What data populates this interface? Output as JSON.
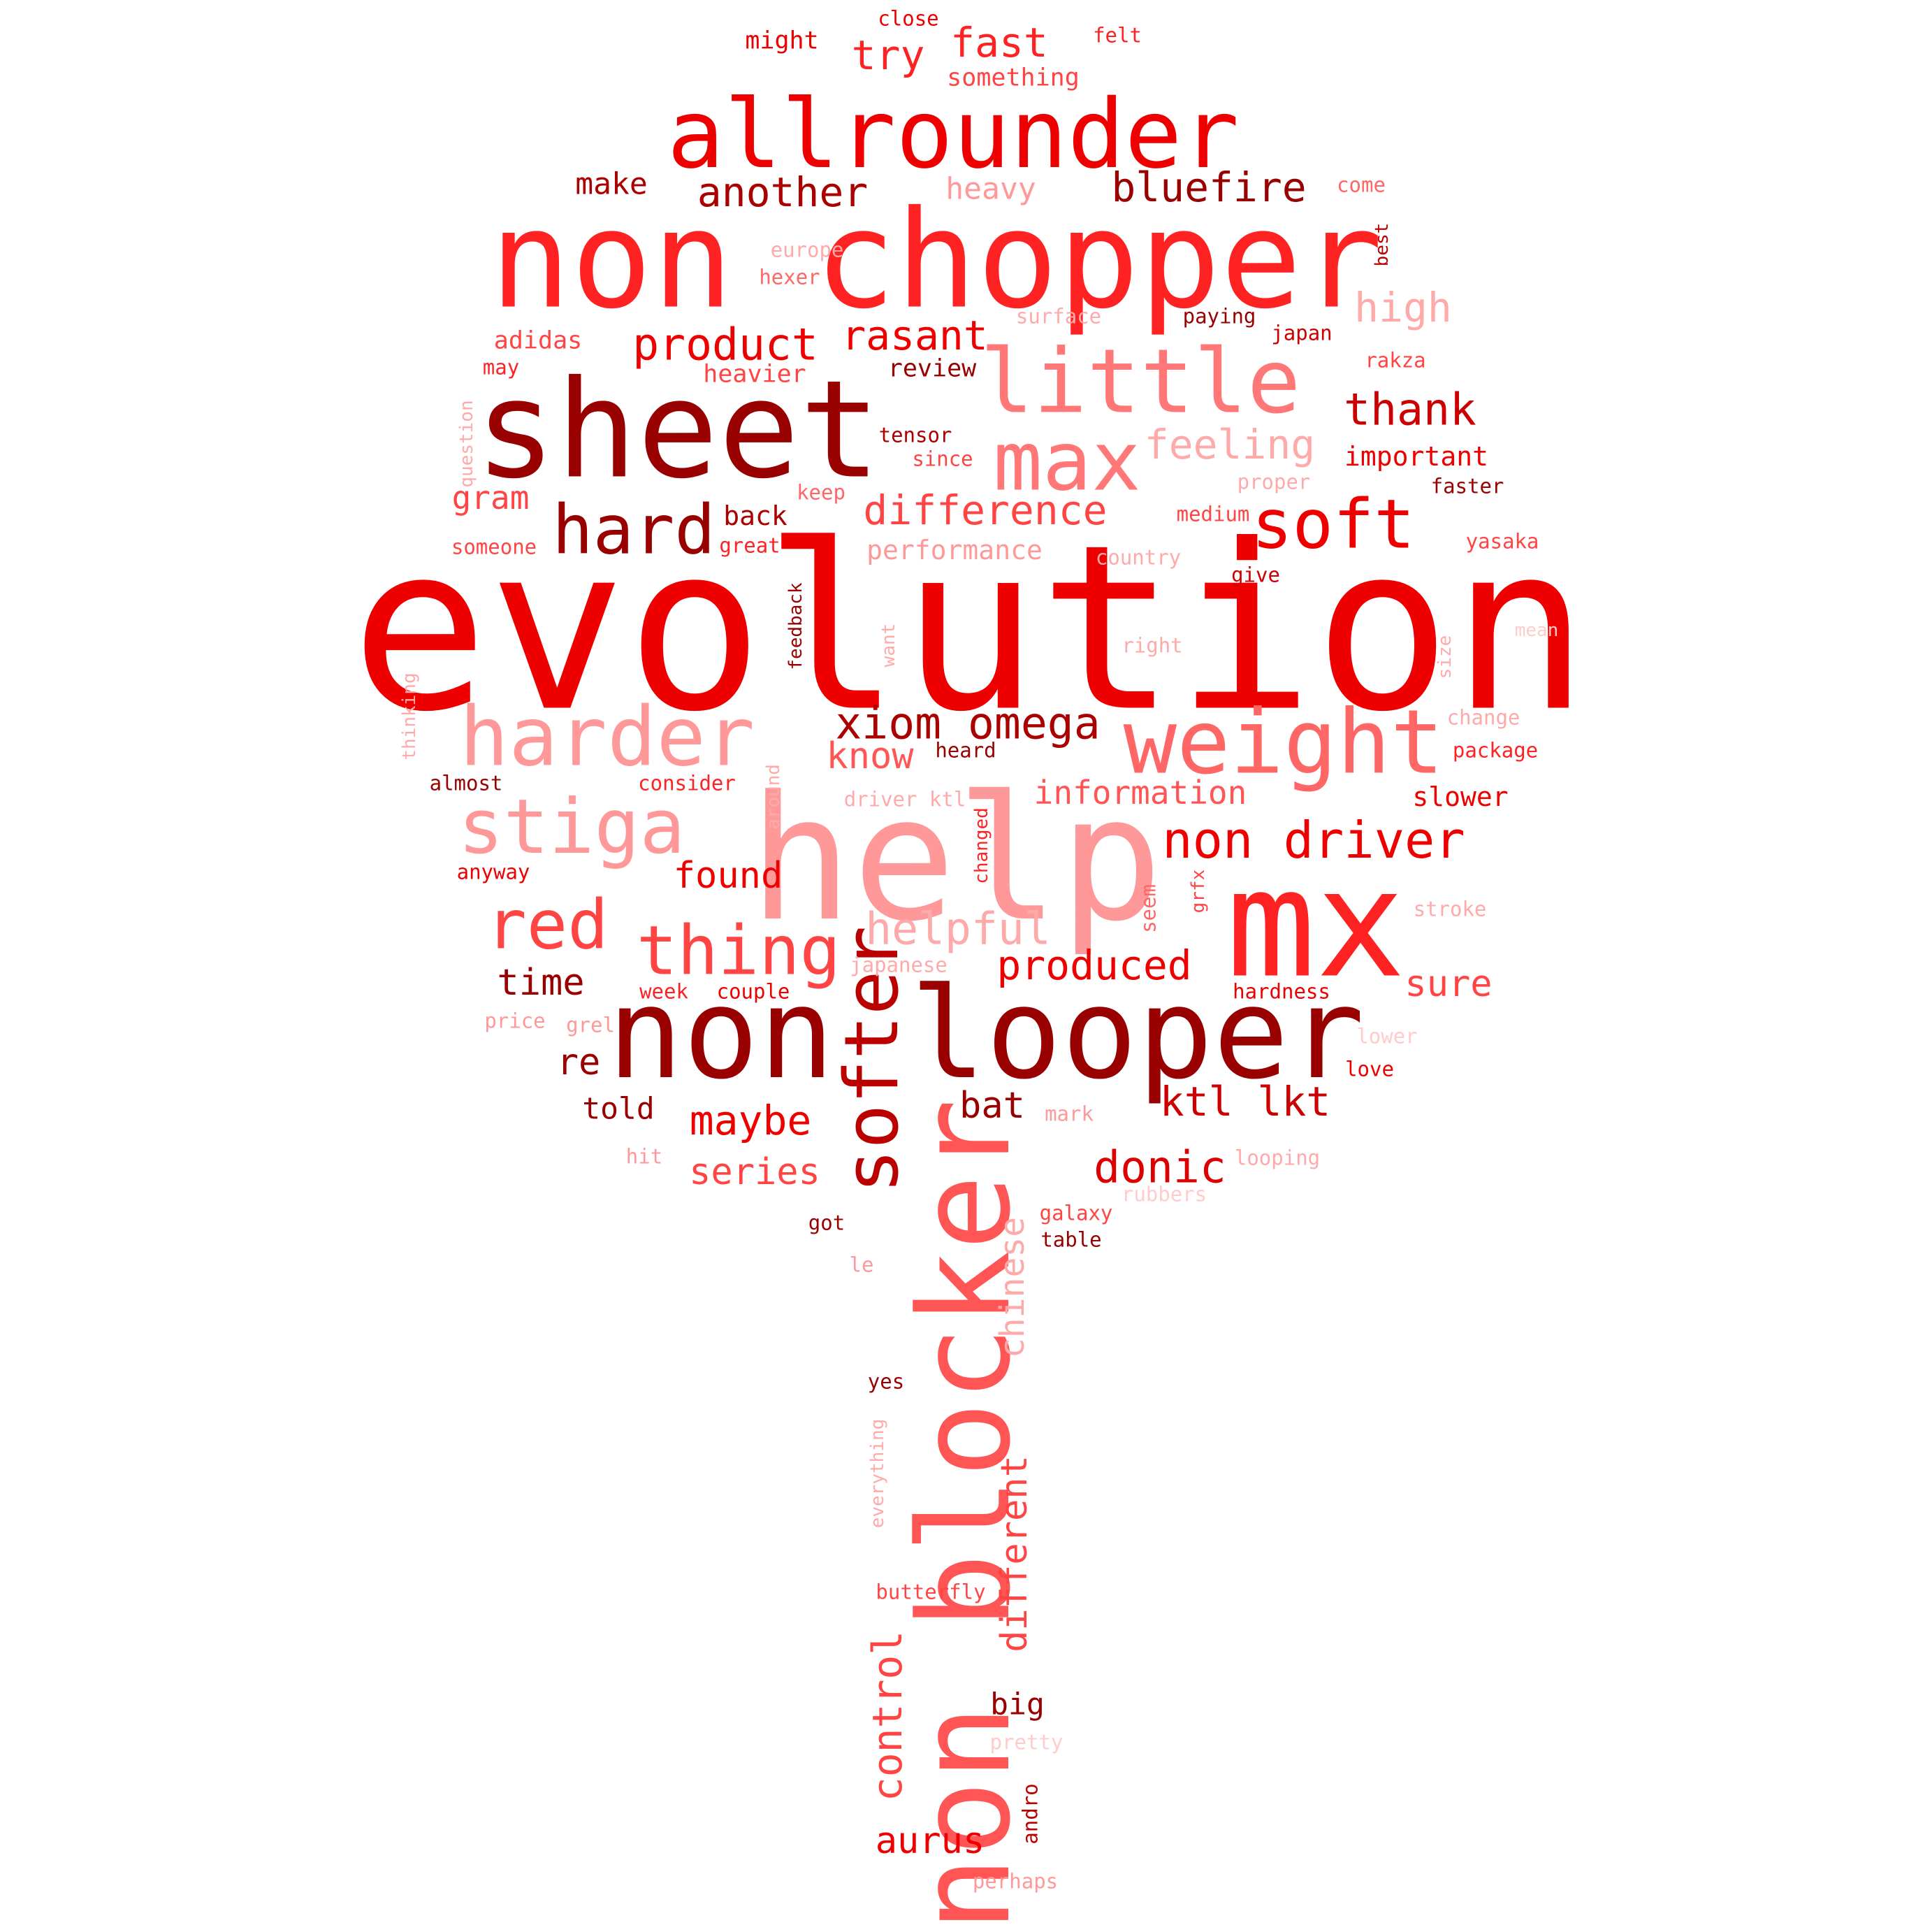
{
  "colors": {
    "background": "#ffffff",
    "bright_red": "#ee0000",
    "mid_red": "#ff3333",
    "dark_red": "#990000",
    "light_red": "#ff9999",
    "salmon": "#ff6666"
  },
  "words": [
    {
      "text": "evolution",
      "color": "#ee0000",
      "vertical": false
    },
    {
      "text": "help",
      "color": "#ff9999",
      "vertical": false
    },
    {
      "text": "non chopper",
      "color": "#ff2222",
      "vertical": false
    },
    {
      "text": "mx",
      "color": "#ff2222",
      "vertical": false
    },
    {
      "text": "sheet",
      "color": "#990000",
      "vertical": false
    },
    {
      "text": "non looper",
      "color": "#990000",
      "vertical": false
    },
    {
      "text": "allrounder",
      "color": "#ee0000",
      "vertical": false
    },
    {
      "text": "non blocker",
      "color": "#ff5555",
      "vertical": true
    },
    {
      "text": "weight",
      "color": "#ff6666",
      "vertical": false
    },
    {
      "text": "little",
      "color": "#ff7777",
      "vertical": false
    },
    {
      "text": "harder",
      "color": "#ff9999",
      "vertical": false
    },
    {
      "text": "stiga",
      "color": "#ff9999",
      "vertical": false
    },
    {
      "text": "max",
      "color": "#ff7777",
      "vertical": false
    },
    {
      "text": "softer",
      "color": "#bb0000",
      "vertical": true
    },
    {
      "text": "hard",
      "color": "#990000",
      "vertical": false
    },
    {
      "text": "soft",
      "color": "#ee0000",
      "vertical": false
    },
    {
      "text": "red",
      "color": "#ff4444",
      "vertical": false
    },
    {
      "text": "thing",
      "color": "#ff4444",
      "vertical": false
    },
    {
      "text": "non driver",
      "color": "#ee0000",
      "vertical": false
    },
    {
      "text": "xiom omega",
      "color": "#aa0000",
      "vertical": false
    },
    {
      "text": "helpful",
      "color": "#ffaaaa",
      "vertical": false
    },
    {
      "text": "product",
      "color": "#ee0000",
      "vertical": false
    },
    {
      "text": "rasant",
      "color": "#ee0000",
      "vertical": false
    },
    {
      "text": "thank",
      "color": "#cc0000",
      "vertical": false
    },
    {
      "text": "high",
      "color": "#ffaaaa",
      "vertical": false
    },
    {
      "text": "feeling",
      "color": "#ffaaaa",
      "vertical": false
    },
    {
      "text": "difference",
      "color": "#ff4444",
      "vertical": false
    },
    {
      "text": "bluefire",
      "color": "#990000",
      "vertical": false
    },
    {
      "text": "another",
      "color": "#aa0000",
      "vertical": false
    },
    {
      "text": "try",
      "color": "#ff2222",
      "vertical": false
    },
    {
      "text": "fast",
      "color": "#ff2222",
      "vertical": false
    },
    {
      "text": "donic",
      "color": "#dd0000",
      "vertical": false
    },
    {
      "text": "ktl lkt",
      "color": "#cc0000",
      "vertical": false
    },
    {
      "text": "produced",
      "color": "#ee0000",
      "vertical": false
    },
    {
      "text": "maybe",
      "color": "#ee0000",
      "vertical": false
    },
    {
      "text": "found",
      "color": "#ee0000",
      "vertical": false
    },
    {
      "text": "know",
      "color": "#ff5555",
      "vertical": false
    },
    {
      "text": "information",
      "color": "#ff5555",
      "vertical": false
    },
    {
      "text": "series",
      "color": "#ff4444",
      "vertical": false
    },
    {
      "text": "sure",
      "color": "#ff4444",
      "vertical": false
    },
    {
      "text": "time",
      "color": "#990000",
      "vertical": false
    },
    {
      "text": "gram",
      "color": "#ff4444",
      "vertical": false
    },
    {
      "text": "heavy",
      "color": "#ff9999",
      "vertical": false
    },
    {
      "text": "make",
      "color": "#aa0000",
      "vertical": false
    },
    {
      "text": "re",
      "color": "#990000",
      "vertical": false
    },
    {
      "text": "bat",
      "color": "#990000",
      "vertical": false
    },
    {
      "text": "told",
      "color": "#990000",
      "vertical": false
    },
    {
      "text": "back",
      "color": "#aa0000",
      "vertical": false
    },
    {
      "text": "aurus",
      "color": "#ee0000",
      "vertical": false
    },
    {
      "text": "different",
      "color": "#ff4444",
      "vertical": true
    },
    {
      "text": "control",
      "color": "#ff4444",
      "vertical": true
    },
    {
      "text": "chinese",
      "color": "#ffaaaa",
      "vertical": true
    },
    {
      "text": "big",
      "color": "#990000",
      "vertical": false
    },
    {
      "text": "performance",
      "color": "#ff9999",
      "vertical": false
    },
    {
      "text": "slower",
      "color": "#ee0000",
      "vertical": false
    },
    {
      "text": "important",
      "color": "#ee0000",
      "vertical": false
    },
    {
      "text": "review",
      "color": "#990000",
      "vertical": false
    },
    {
      "text": "heavier",
      "color": "#ff4444",
      "vertical": false
    },
    {
      "text": "adidas",
      "color": "#ff4444",
      "vertical": false
    },
    {
      "text": "something",
      "color": "#ff4444",
      "vertical": false
    },
    {
      "text": "might",
      "color": "#ee0000",
      "vertical": false
    },
    {
      "text": "close",
      "color": "#ee0000",
      "vertical": false
    },
    {
      "text": "felt",
      "color": "#ff2222",
      "vertical": false
    },
    {
      "text": "come",
      "color": "#ff6666",
      "vertical": false
    },
    {
      "text": "europe",
      "color": "#ffaaaa",
      "vertical": false
    },
    {
      "text": "hexer",
      "color": "#ff6666",
      "vertical": false
    },
    {
      "text": "best",
      "color": "#bb0000",
      "vertical": true
    },
    {
      "text": "surface",
      "color": "#ffaaaa",
      "vertical": false
    },
    {
      "text": "paying",
      "color": "#990000",
      "vertical": false
    },
    {
      "text": "japan",
      "color": "#cc0000",
      "vertical": false
    },
    {
      "text": "rakza",
      "color": "#ff4444",
      "vertical": false
    },
    {
      "text": "may",
      "color": "#ff2222",
      "vertical": false
    },
    {
      "text": "question",
      "color": "#ffaaaa",
      "vertical": true
    },
    {
      "text": "tensor",
      "color": "#aa0000",
      "vertical": false
    },
    {
      "text": "since",
      "color": "#ff4444",
      "vertical": false
    },
    {
      "text": "proper",
      "color": "#ffaaaa",
      "vertical": false
    },
    {
      "text": "faster",
      "color": "#990000",
      "vertical": false
    },
    {
      "text": "keep",
      "color": "#ff6666",
      "vertical": false
    },
    {
      "text": "medium",
      "color": "#ff4444",
      "vertical": false
    },
    {
      "text": "someone",
      "color": "#ff4444",
      "vertical": false
    },
    {
      "text": "great",
      "color": "#ff2222",
      "vertical": false
    },
    {
      "text": "country",
      "color": "#ffaaaa",
      "vertical": false
    },
    {
      "text": "yasaka",
      "color": "#ff4444",
      "vertical": false
    },
    {
      "text": "give",
      "color": "#cc0000",
      "vertical": false
    },
    {
      "text": "feedback",
      "color": "#990000",
      "vertical": true
    },
    {
      "text": "want",
      "color": "#ffaaaa",
      "vertical": true
    },
    {
      "text": "right",
      "color": "#ffaaaa",
      "vertical": false
    },
    {
      "text": "mean",
      "color": "#ffcccc",
      "vertical": false
    },
    {
      "text": "size",
      "color": "#ffaaaa",
      "vertical": true
    },
    {
      "text": "thinking",
      "color": "#ffaaaa",
      "vertical": true
    },
    {
      "text": "change",
      "color": "#ffaaaa",
      "vertical": false
    },
    {
      "text": "heard",
      "color": "#990000",
      "vertical": false
    },
    {
      "text": "package",
      "color": "#ff2222",
      "vertical": false
    },
    {
      "text": "almost",
      "color": "#990000",
      "vertical": false
    },
    {
      "text": "consider",
      "color": "#ff2222",
      "vertical": false
    },
    {
      "text": "around",
      "color": "#ffaaaa",
      "vertical": true
    },
    {
      "text": "driver ktl",
      "color": "#ffaaaa",
      "vertical": false
    },
    {
      "text": "changed",
      "color": "#ff2222",
      "vertical": true
    },
    {
      "text": "anyway",
      "color": "#ee0000",
      "vertical": false
    },
    {
      "text": "seem",
      "color": "#ff6666",
      "vertical": true
    },
    {
      "text": "grfx",
      "color": "#ff4444",
      "vertical": true
    },
    {
      "text": "stroke",
      "color": "#ffaaaa",
      "vertical": false
    },
    {
      "text": "japanese",
      "color": "#ffaaaa",
      "vertical": false
    },
    {
      "text": "week",
      "color": "#ff2222",
      "vertical": false
    },
    {
      "text": "couple",
      "color": "#ee0000",
      "vertical": false
    },
    {
      "text": "hardness",
      "color": "#ee0000",
      "vertical": false
    },
    {
      "text": "price",
      "color": "#ff9999",
      "vertical": false
    },
    {
      "text": "grel",
      "color": "#ff9999",
      "vertical": false
    },
    {
      "text": "lower",
      "color": "#ffcccc",
      "vertical": false
    },
    {
      "text": "love",
      "color": "#ee0000",
      "vertical": false
    },
    {
      "text": "mark",
      "color": "#ff9999",
      "vertical": false
    },
    {
      "text": "hit",
      "color": "#ff9999",
      "vertical": false
    },
    {
      "text": "looping",
      "color": "#ffaaaa",
      "vertical": false
    },
    {
      "text": "rubbers",
      "color": "#ffcccc",
      "vertical": false
    },
    {
      "text": "galaxy",
      "color": "#ff4444",
      "vertical": false
    },
    {
      "text": "got",
      "color": "#990000",
      "vertical": false
    },
    {
      "text": "table",
      "color": "#990000",
      "vertical": false
    },
    {
      "text": "le",
      "color": "#ff9999",
      "vertical": false
    },
    {
      "text": "yes",
      "color": "#990000",
      "vertical": false
    },
    {
      "text": "everything",
      "color": "#ffaaaa",
      "vertical": true
    },
    {
      "text": "butterfly",
      "color": "#ff4444",
      "vertical": false
    },
    {
      "text": "pretty",
      "color": "#ffcccc",
      "vertical": false
    },
    {
      "text": "andro",
      "color": "#bb0000",
      "vertical": true
    },
    {
      "text": "perhaps",
      "color": "#ff9999",
      "vertical": false
    }
  ]
}
